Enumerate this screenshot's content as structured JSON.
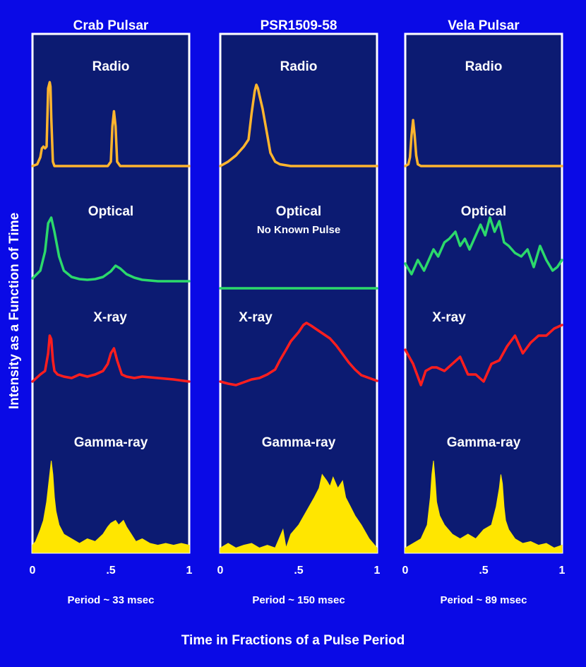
{
  "figure": {
    "ylabel": "Intensity as a Function of Time",
    "xlabel": "Time in Fractions of a Pulse Period",
    "colors": {
      "background": "#0a0ae6",
      "panel": "#0c1b72",
      "frame": "#ffffff",
      "radio": "#ffb52e",
      "optical": "#2cd96b",
      "xray": "#ff1e1e",
      "gamma": "#ffe600"
    }
  },
  "chart_data": [
    {
      "type": "line",
      "title": "Crab Pulsar",
      "period_label": "Period ~ 33 msec",
      "x_ticks": [
        "0",
        ".5",
        "1"
      ],
      "xlim": [
        0,
        1
      ],
      "bands": [
        {
          "name": "Radio",
          "label": "Radio",
          "note": "",
          "color": "#ffb52e",
          "style": "line",
          "x": [
            0,
            0.03,
            0.05,
            0.06,
            0.07,
            0.08,
            0.09,
            0.1,
            0.11,
            0.115,
            0.12,
            0.13,
            0.14,
            0.2,
            0.3,
            0.4,
            0.48,
            0.5,
            0.51,
            0.52,
            0.53,
            0.54,
            0.56,
            0.7,
            0.85,
            1
          ],
          "y": [
            0.0,
            0.02,
            0.1,
            0.2,
            0.22,
            0.2,
            0.22,
            0.88,
            0.95,
            0.9,
            0.55,
            0.05,
            0.0,
            0.0,
            0.0,
            0.0,
            0.0,
            0.05,
            0.45,
            0.62,
            0.45,
            0.05,
            0.0,
            0.0,
            0.0,
            0.0
          ]
        },
        {
          "name": "Optical",
          "label": "Optical",
          "note": "",
          "color": "#2cd96b",
          "style": "line",
          "x": [
            0,
            0.05,
            0.08,
            0.1,
            0.12,
            0.14,
            0.17,
            0.2,
            0.25,
            0.3,
            0.35,
            0.4,
            0.45,
            0.5,
            0.53,
            0.56,
            0.6,
            0.65,
            0.7,
            0.8,
            0.9,
            1
          ],
          "y": [
            0.04,
            0.15,
            0.42,
            0.82,
            0.9,
            0.7,
            0.35,
            0.15,
            0.06,
            0.03,
            0.02,
            0.03,
            0.06,
            0.14,
            0.22,
            0.18,
            0.1,
            0.05,
            0.02,
            0.0,
            0.0,
            0.0
          ]
        },
        {
          "name": "X-ray",
          "label": "X-ray",
          "note": "",
          "color": "#ff1e1e",
          "style": "line",
          "x": [
            0,
            0.05,
            0.08,
            0.1,
            0.11,
            0.12,
            0.13,
            0.14,
            0.16,
            0.2,
            0.25,
            0.3,
            0.35,
            0.4,
            0.45,
            0.48,
            0.5,
            0.52,
            0.54,
            0.57,
            0.6,
            0.65,
            0.7,
            0.8,
            0.9,
            1
          ],
          "y": [
            0.05,
            0.15,
            0.2,
            0.45,
            0.7,
            0.65,
            0.35,
            0.2,
            0.15,
            0.12,
            0.1,
            0.15,
            0.12,
            0.15,
            0.2,
            0.3,
            0.45,
            0.52,
            0.35,
            0.15,
            0.12,
            0.1,
            0.12,
            0.1,
            0.08,
            0.05
          ]
        },
        {
          "name": "Gamma-ray",
          "label": "Gamma-ray",
          "note": "",
          "color": "#ffe600",
          "style": "area",
          "x": [
            0,
            0.02,
            0.05,
            0.07,
            0.09,
            0.11,
            0.12,
            0.13,
            0.14,
            0.15,
            0.17,
            0.2,
            0.25,
            0.3,
            0.35,
            0.4,
            0.45,
            0.48,
            0.5,
            0.53,
            0.55,
            0.58,
            0.6,
            0.63,
            0.66,
            0.7,
            0.75,
            0.8,
            0.85,
            0.9,
            0.95,
            1
          ],
          "y": [
            0.08,
            0.12,
            0.25,
            0.35,
            0.55,
            0.85,
            1.0,
            0.85,
            0.6,
            0.45,
            0.3,
            0.2,
            0.15,
            0.1,
            0.15,
            0.12,
            0.2,
            0.28,
            0.32,
            0.35,
            0.3,
            0.35,
            0.28,
            0.2,
            0.12,
            0.15,
            0.1,
            0.08,
            0.1,
            0.08,
            0.1,
            0.08
          ]
        }
      ]
    },
    {
      "type": "line",
      "title": "PSR1509-58",
      "period_label": "Period ~ 150 msec",
      "x_ticks": [
        "0",
        ".5",
        "1"
      ],
      "xlim": [
        0,
        1
      ],
      "bands": [
        {
          "name": "Radio",
          "label": "Radio",
          "note": "",
          "color": "#ffb52e",
          "style": "line",
          "x": [
            0,
            0.05,
            0.1,
            0.15,
            0.18,
            0.2,
            0.22,
            0.23,
            0.24,
            0.25,
            0.27,
            0.3,
            0.32,
            0.35,
            0.38,
            0.45,
            0.6,
            0.8,
            1
          ],
          "y": [
            0.0,
            0.05,
            0.12,
            0.22,
            0.3,
            0.6,
            0.85,
            0.92,
            0.88,
            0.8,
            0.65,
            0.35,
            0.15,
            0.05,
            0.02,
            0.0,
            0.0,
            0.0,
            0.0
          ]
        },
        {
          "name": "Optical",
          "label": "Optical",
          "note": "No Known Pulse",
          "color": "#2cd96b",
          "style": "line",
          "x": [
            0,
            1
          ],
          "y": [
            0,
            0
          ]
        },
        {
          "name": "X-ray",
          "label": "X-ray",
          "note": "",
          "color": "#ff1e1e",
          "style": "line",
          "x": [
            0,
            0.05,
            0.1,
            0.15,
            0.2,
            0.25,
            0.3,
            0.35,
            0.38,
            0.42,
            0.45,
            0.5,
            0.53,
            0.55,
            0.58,
            0.62,
            0.66,
            0.7,
            0.74,
            0.78,
            0.82,
            0.86,
            0.9,
            0.95,
            1
          ],
          "y": [
            0.05,
            0.02,
            0.0,
            0.04,
            0.08,
            0.1,
            0.15,
            0.22,
            0.35,
            0.5,
            0.62,
            0.75,
            0.85,
            0.88,
            0.84,
            0.78,
            0.72,
            0.66,
            0.56,
            0.44,
            0.32,
            0.22,
            0.14,
            0.1,
            0.06
          ]
        },
        {
          "name": "Gamma-ray",
          "label": "Gamma-ray",
          "note": "",
          "color": "#ffe600",
          "style": "area",
          "x": [
            0,
            0.05,
            0.1,
            0.15,
            0.2,
            0.25,
            0.3,
            0.35,
            0.4,
            0.42,
            0.45,
            0.5,
            0.55,
            0.6,
            0.63,
            0.65,
            0.68,
            0.7,
            0.72,
            0.75,
            0.78,
            0.8,
            0.83,
            0.86,
            0.9,
            0.95,
            1
          ],
          "y": [
            0.05,
            0.1,
            0.05,
            0.08,
            0.1,
            0.05,
            0.08,
            0.05,
            0.25,
            0.05,
            0.2,
            0.3,
            0.45,
            0.6,
            0.7,
            0.85,
            0.78,
            0.72,
            0.82,
            0.7,
            0.78,
            0.6,
            0.5,
            0.4,
            0.3,
            0.15,
            0.05
          ]
        }
      ]
    },
    {
      "type": "line",
      "title": "Vela Pulsar",
      "period_label": "Period ~ 89 msec",
      "x_ticks": [
        "0",
        ".5",
        "1"
      ],
      "xlim": [
        0,
        1
      ],
      "bands": [
        {
          "name": "Radio",
          "label": "Radio",
          "note": "",
          "color": "#ffb52e",
          "style": "line",
          "x": [
            0,
            0.02,
            0.03,
            0.04,
            0.05,
            0.06,
            0.07,
            0.08,
            0.1,
            0.2,
            0.4,
            0.6,
            0.8,
            1
          ],
          "y": [
            0.0,
            0.02,
            0.1,
            0.35,
            0.52,
            0.35,
            0.12,
            0.02,
            0.0,
            0.0,
            0.0,
            0.0,
            0.0,
            0.0
          ]
        },
        {
          "name": "Optical",
          "label": "Optical",
          "note": "",
          "color": "#2cd96b",
          "style": "line",
          "x": [
            0,
            0.04,
            0.08,
            0.12,
            0.15,
            0.18,
            0.21,
            0.25,
            0.28,
            0.32,
            0.35,
            0.38,
            0.41,
            0.45,
            0.48,
            0.51,
            0.54,
            0.57,
            0.6,
            0.63,
            0.66,
            0.7,
            0.74,
            0.78,
            0.82,
            0.86,
            0.9,
            0.94,
            0.97,
            1
          ],
          "y": [
            0.25,
            0.1,
            0.3,
            0.15,
            0.3,
            0.45,
            0.35,
            0.55,
            0.6,
            0.7,
            0.5,
            0.6,
            0.45,
            0.65,
            0.8,
            0.65,
            0.9,
            0.7,
            0.85,
            0.55,
            0.5,
            0.4,
            0.35,
            0.45,
            0.2,
            0.5,
            0.3,
            0.15,
            0.2,
            0.3
          ]
        },
        {
          "name": "X-ray",
          "label": "X-ray",
          "note": "",
          "color": "#ff1e1e",
          "style": "line",
          "x": [
            0,
            0.05,
            0.1,
            0.13,
            0.17,
            0.2,
            0.25,
            0.3,
            0.35,
            0.4,
            0.45,
            0.5,
            0.55,
            0.6,
            0.65,
            0.7,
            0.75,
            0.8,
            0.85,
            0.9,
            0.95,
            1
          ],
          "y": [
            0.5,
            0.3,
            0.0,
            0.2,
            0.25,
            0.25,
            0.2,
            0.3,
            0.4,
            0.15,
            0.15,
            0.05,
            0.3,
            0.35,
            0.55,
            0.7,
            0.45,
            0.6,
            0.7,
            0.7,
            0.8,
            0.85
          ]
        },
        {
          "name": "Gamma-ray",
          "label": "Gamma-ray",
          "note": "",
          "color": "#ffe600",
          "style": "area",
          "x": [
            0,
            0.05,
            0.1,
            0.14,
            0.16,
            0.17,
            0.18,
            0.19,
            0.2,
            0.22,
            0.25,
            0.3,
            0.35,
            0.4,
            0.45,
            0.5,
            0.55,
            0.58,
            0.6,
            0.61,
            0.62,
            0.63,
            0.64,
            0.66,
            0.7,
            0.75,
            0.8,
            0.85,
            0.9,
            0.95,
            1
          ],
          "y": [
            0.05,
            0.1,
            0.15,
            0.3,
            0.6,
            0.85,
            1.0,
            0.8,
            0.55,
            0.4,
            0.3,
            0.2,
            0.15,
            0.2,
            0.15,
            0.25,
            0.3,
            0.5,
            0.7,
            0.85,
            0.75,
            0.5,
            0.35,
            0.25,
            0.15,
            0.1,
            0.12,
            0.08,
            0.1,
            0.05,
            0.08
          ]
        }
      ]
    }
  ]
}
